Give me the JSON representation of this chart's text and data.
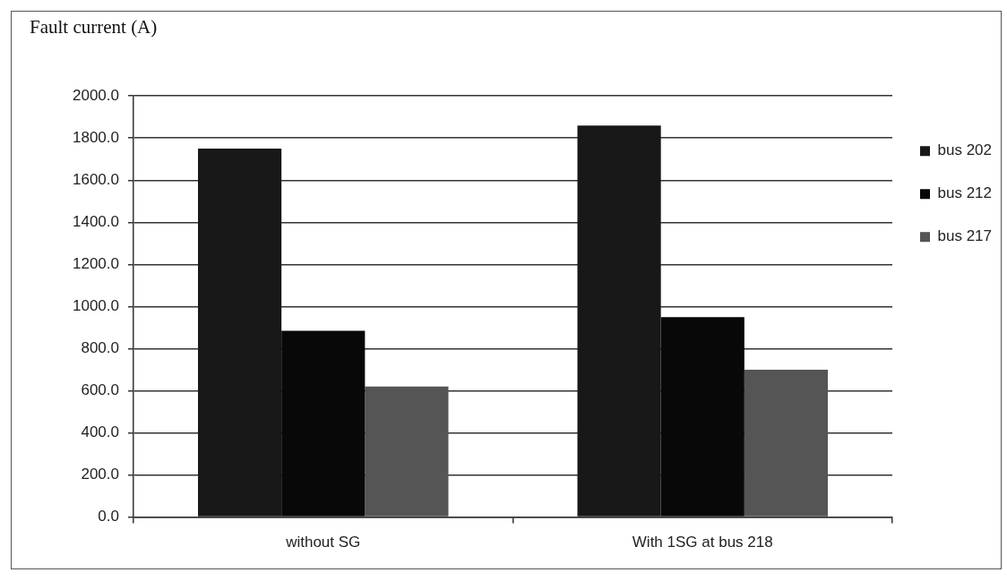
{
  "chart_data": {
    "type": "bar",
    "ylabel": "Fault current (A)",
    "categories": [
      "without SG",
      "With 1SG at bus 218"
    ],
    "series": [
      {
        "name": "bus 202",
        "color": "#181818",
        "values": [
          1750,
          1860
        ]
      },
      {
        "name": "bus 212",
        "color": "#080808",
        "values": [
          885,
          950
        ]
      },
      {
        "name": "bus 217",
        "color": "#555555",
        "values": [
          620,
          700
        ]
      }
    ],
    "ylim": [
      0,
      2000
    ],
    "yticks": [
      {
        "value": 0,
        "label": "0.0"
      },
      {
        "value": 200,
        "label": "200.0"
      },
      {
        "value": 400,
        "label": "400.0"
      },
      {
        "value": 600,
        "label": "600.0"
      },
      {
        "value": 800,
        "label": "800.0"
      },
      {
        "value": 1000,
        "label": "1000.0"
      },
      {
        "value": 1200,
        "label": "1200.0"
      },
      {
        "value": 1400,
        "label": "1400.0"
      },
      {
        "value": 1600,
        "label": "1600.0"
      },
      {
        "value": 1800,
        "label": "1800.0"
      },
      {
        "value": 2000,
        "label": "2000.0"
      }
    ],
    "grid": "y",
    "legend": "top right"
  }
}
